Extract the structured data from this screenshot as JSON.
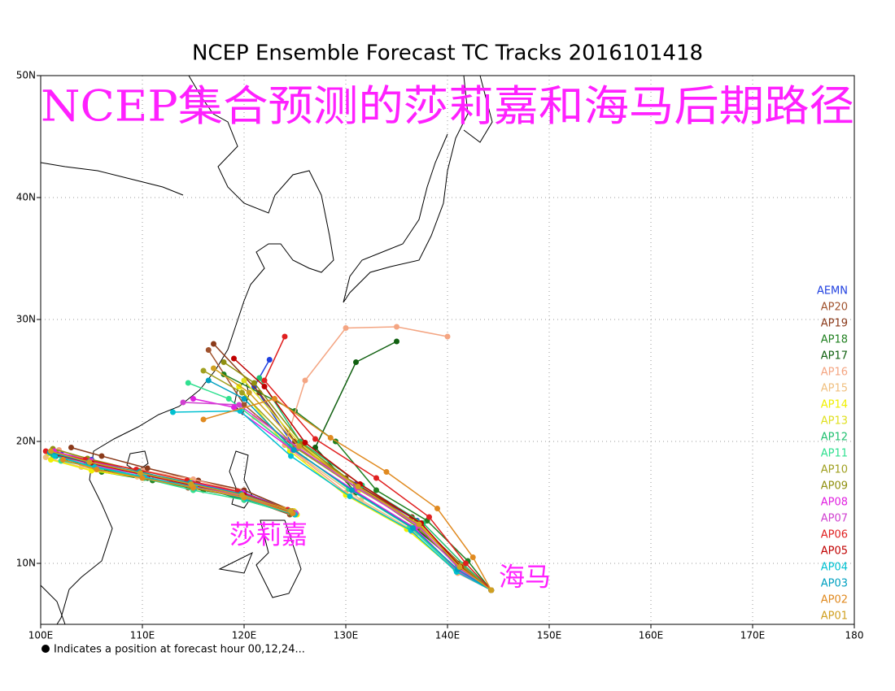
{
  "title": "NCEP Ensemble Forecast TC Tracks 2016101418",
  "overlay_title": "NCEP集合预测的莎莉嘉和海马后期路径",
  "annotations": [
    "莎莉嘉",
    "海马"
  ],
  "footnote": "Indicates a position at forecast hour 00,12,24...",
  "map": {
    "xlim": [
      100,
      180
    ],
    "ylim": [
      5,
      50
    ],
    "xticks": [
      {
        "value": 100,
        "label": "100E"
      },
      {
        "value": 110,
        "label": "110E"
      },
      {
        "value": 120,
        "label": "120E"
      },
      {
        "value": 130,
        "label": "130E"
      },
      {
        "value": 140,
        "label": "140E"
      },
      {
        "value": 150,
        "label": "150E"
      },
      {
        "value": 160,
        "label": "160E"
      },
      {
        "value": 170,
        "label": "170E"
      },
      {
        "value": 180,
        "label": "180"
      }
    ],
    "yticks": [
      {
        "value": 10,
        "label": "10N"
      },
      {
        "value": 20,
        "label": "20N"
      },
      {
        "value": 30,
        "label": "30N"
      },
      {
        "value": 40,
        "label": "40N"
      },
      {
        "value": 50,
        "label": "50N"
      }
    ],
    "grid": true
  },
  "series": [
    {
      "name": "AEMN",
      "color": "#2040e0",
      "tracks": [
        {
          "lon": [
            144.3,
            141,
            137,
            131,
            125,
            121,
            122.5
          ],
          "lat": [
            7.8,
            9.8,
            13.5,
            16.5,
            19.5,
            24.5,
            26.7
          ]
        },
        {
          "lon": [
            125,
            120,
            115,
            110,
            105,
            102
          ],
          "lat": [
            14.2,
            15.8,
            16.5,
            17.3,
            18.5,
            19
          ]
        }
      ]
    },
    {
      "name": "AP20",
      "color": "#a0522d",
      "tracks": [
        {
          "lon": [
            144.3,
            141.5,
            137.5,
            131.5,
            125,
            120,
            116.5
          ],
          "lat": [
            7.8,
            9.8,
            13,
            16.3,
            19.5,
            23,
            27.5
          ]
        },
        {
          "lon": [
            124.5,
            119.5,
            114.5,
            109.5,
            104.5,
            101
          ],
          "lat": [
            14,
            15.5,
            16.2,
            17.5,
            18.2,
            19.2
          ]
        }
      ]
    },
    {
      "name": "AP19",
      "color": "#8b3a1a",
      "tracks": [
        {
          "lon": [
            144.3,
            141,
            136.5,
            130,
            125,
            121.5,
            117
          ],
          "lat": [
            7.8,
            10,
            13.8,
            17,
            20,
            24,
            28
          ]
        },
        {
          "lon": [
            124.8,
            120,
            115.5,
            110.5,
            106,
            103
          ],
          "lat": [
            14.3,
            16,
            16.8,
            17.8,
            18.8,
            19.5
          ]
        }
      ]
    },
    {
      "name": "AP18",
      "color": "#208020",
      "tracks": [
        {
          "lon": [
            144.3,
            142,
            138,
            133,
            129,
            125,
            118
          ],
          "lat": [
            7.8,
            10.2,
            13.5,
            16,
            20,
            22.5,
            25.5
          ]
        },
        {
          "lon": [
            125,
            120.5,
            116,
            111,
            106,
            102.5
          ],
          "lat": [
            14,
            15.3,
            16,
            16.8,
            17.5,
            18.6
          ]
        }
      ]
    },
    {
      "name": "AP17",
      "color": "#106010",
      "tracks": [
        {
          "lon": [
            144.3,
            141.5,
            137,
            131,
            127,
            131,
            135
          ],
          "lat": [
            7.8,
            9.6,
            12.8,
            15.8,
            19.5,
            26.5,
            28.2
          ]
        },
        {
          "lon": [
            124.6,
            120,
            115,
            110.5,
            105.5,
            101.5
          ],
          "lat": [
            14.1,
            15.2,
            16.4,
            17,
            17.8,
            18.8
          ]
        }
      ]
    },
    {
      "name": "AP16",
      "color": "#f4a582",
      "tracks": [
        {
          "lon": [
            144.3,
            141,
            136.5,
            130,
            124,
            126,
            130,
            135,
            140
          ],
          "lat": [
            7.8,
            9.2,
            12.6,
            15.8,
            19.7,
            25,
            29.3,
            29.4,
            28.6
          ]
        },
        {
          "lon": [
            124.2,
            119.5,
            115,
            110,
            105,
            101.8
          ],
          "lat": [
            14.4,
            15.9,
            16.9,
            17.6,
            18.4,
            19.3
          ]
        }
      ]
    },
    {
      "name": "AP15",
      "color": "#f0c080",
      "tracks": [
        {
          "lon": [
            144.3,
            141.2,
            137,
            131.5,
            126,
            121
          ],
          "lat": [
            7.8,
            9.4,
            12.5,
            15.2,
            18.5,
            22
          ]
        },
        {
          "lon": [
            124.5,
            120,
            114.5,
            109.5,
            104,
            100.5
          ],
          "lat": [
            14.2,
            15.6,
            16.6,
            17.1,
            17.9,
            18.7
          ]
        }
      ]
    },
    {
      "name": "AP14",
      "color": "#f0f000",
      "tracks": [
        {
          "lon": [
            144.3,
            141,
            136,
            130,
            124.5,
            119.5
          ],
          "lat": [
            7.8,
            9.3,
            12.8,
            15.6,
            19.2,
            24.5
          ]
        },
        {
          "lon": [
            125.2,
            120.3,
            115.3,
            110.2,
            105,
            101
          ],
          "lat": [
            14,
            15.4,
            16.2,
            17,
            17.6,
            18.5
          ]
        }
      ]
    },
    {
      "name": "AP13",
      "color": "#e0e020",
      "tracks": [
        {
          "lon": [
            144.3,
            141.3,
            137.3,
            131.3,
            125.5,
            120
          ],
          "lat": [
            7.8,
            9.7,
            13.2,
            16,
            19.8,
            25
          ]
        },
        {
          "lon": [
            124.9,
            119.8,
            114.8,
            109.8,
            104.8,
            100.8
          ],
          "lat": [
            14.3,
            15.7,
            16.7,
            17.4,
            18,
            19
          ]
        }
      ]
    },
    {
      "name": "AP12",
      "color": "#20c070",
      "tracks": [
        {
          "lon": [
            144.3,
            141.6,
            137.6,
            131.6,
            125.5,
            121.5
          ],
          "lat": [
            7.8,
            9.9,
            13.3,
            16.4,
            20,
            25.2
          ]
        },
        {
          "lon": [
            124.6,
            120.2,
            115.2,
            110.2,
            105.2,
            101.2
          ],
          "lat": [
            14.2,
            15.5,
            16.3,
            17,
            18.1,
            18.9
          ]
        }
      ]
    },
    {
      "name": "AP11",
      "color": "#30e090",
      "tracks": [
        {
          "lon": [
            144.3,
            140.8,
            136.3,
            130.3,
            124.5,
            118.5,
            114.5
          ],
          "lat": [
            7.8,
            9.5,
            13,
            16.1,
            19.6,
            23.5,
            24.8
          ]
        },
        {
          "lon": [
            125,
            120,
            115,
            110,
            106,
            102
          ],
          "lat": [
            14,
            15.2,
            16,
            17,
            17.8,
            18.4
          ]
        }
      ]
    },
    {
      "name": "AP10",
      "color": "#a0a020",
      "tracks": [
        {
          "lon": [
            144.3,
            141.4,
            137.2,
            131,
            125.2,
            119.8,
            116
          ],
          "lat": [
            7.8,
            9.8,
            13.1,
            16.2,
            19.4,
            24,
            25.8
          ]
        },
        {
          "lon": [
            124.7,
            120.1,
            115.1,
            110.1,
            105.1,
            101.5
          ],
          "lat": [
            14.1,
            15.4,
            16.5,
            17.3,
            18.2,
            19.1
          ]
        }
      ]
    },
    {
      "name": "AP09",
      "color": "#909010",
      "tracks": [
        {
          "lon": [
            144.3,
            141.2,
            137,
            131.2,
            125.7,
            121,
            118
          ],
          "lat": [
            7.8,
            9.6,
            13,
            16.3,
            19.8,
            24.8,
            26.5
          ]
        },
        {
          "lon": [
            124.4,
            119.6,
            114.6,
            109.6,
            104.6,
            101.2
          ],
          "lat": [
            14.3,
            15.6,
            16.4,
            17.6,
            18.6,
            19.4
          ]
        }
      ]
    },
    {
      "name": "AP08",
      "color": "#e020e0",
      "tracks": [
        {
          "lon": [
            144.3,
            141,
            136.8,
            130.8,
            124.8,
            119,
            115
          ],
          "lat": [
            7.8,
            9.4,
            12.9,
            16,
            19.3,
            22.8,
            23.5
          ]
        },
        {
          "lon": [
            124.8,
            119.9,
            114.9,
            109.9,
            104.9,
            101.3
          ],
          "lat": [
            14.2,
            15.8,
            16.6,
            17.4,
            18.4,
            19.2
          ]
        }
      ]
    },
    {
      "name": "AP07",
      "color": "#d040d0",
      "tracks": [
        {
          "lon": [
            144.3,
            141.1,
            137.1,
            131.1,
            125.3,
            119.5,
            114
          ],
          "lat": [
            7.8,
            9.6,
            13.1,
            16.2,
            19.5,
            23,
            23.2
          ]
        },
        {
          "lon": [
            125.1,
            120.1,
            115.4,
            110.4,
            105.4,
            101.6
          ],
          "lat": [
            14.1,
            15.5,
            16.3,
            17.2,
            18,
            18.9
          ]
        }
      ]
    },
    {
      "name": "AP06",
      "color": "#e02020",
      "tracks": [
        {
          "lon": [
            144.3,
            141.8,
            138.2,
            133,
            127,
            122,
            124
          ],
          "lat": [
            7.8,
            10,
            13.8,
            17,
            20.2,
            25,
            28.6
          ]
        },
        {
          "lon": [
            124.3,
            119.4,
            114.4,
            109.4,
            104.4,
            100.5
          ],
          "lat": [
            14.4,
            15.9,
            16.8,
            17.7,
            18.5,
            19.2
          ]
        }
      ]
    },
    {
      "name": "AP05",
      "color": "#c00000",
      "tracks": [
        {
          "lon": [
            144.3,
            141.3,
            137.4,
            131.4,
            126,
            122,
            119
          ],
          "lat": [
            7.8,
            9.7,
            13.3,
            16.5,
            19.9,
            24.5,
            26.8
          ]
        },
        {
          "lon": [
            124.7,
            120,
            115,
            110,
            105,
            101.6
          ],
          "lat": [
            14.2,
            15.6,
            16.4,
            17.3,
            18.2,
            18.9
          ]
        }
      ]
    },
    {
      "name": "AP04",
      "color": "#00c0d0",
      "tracks": [
        {
          "lon": [
            144.3,
            140.9,
            136.4,
            130.4,
            124.6,
            119.6,
            113
          ],
          "lat": [
            7.8,
            9.3,
            12.7,
            15.5,
            18.8,
            22.5,
            22.4
          ]
        },
        {
          "lon": [
            125,
            120.2,
            115.2,
            110.2,
            105.3,
            101.4
          ],
          "lat": [
            14,
            15.3,
            16.2,
            17.1,
            17.9,
            18.8
          ]
        }
      ]
    },
    {
      "name": "AP03",
      "color": "#00a0c0",
      "tracks": [
        {
          "lon": [
            144.3,
            141,
            136.6,
            130.6,
            124.9,
            120,
            116.5
          ],
          "lat": [
            7.8,
            9.5,
            12.9,
            16,
            19.3,
            23.5,
            25
          ]
        },
        {
          "lon": [
            124.5,
            119.7,
            114.7,
            109.7,
            104.7,
            100.9
          ],
          "lat": [
            14.3,
            15.7,
            16.6,
            17.5,
            18.3,
            19.1
          ]
        }
      ]
    },
    {
      "name": "AP02",
      "color": "#e08a20",
      "tracks": [
        {
          "lon": [
            144.3,
            142.5,
            139,
            134,
            128.5,
            123,
            116
          ],
          "lat": [
            7.8,
            10.5,
            14.5,
            17.5,
            20.3,
            23.5,
            21.8
          ]
        },
        {
          "lon": [
            124.8,
            120,
            115,
            110,
            105.5,
            102.2
          ],
          "lat": [
            14.1,
            15.4,
            16.2,
            17,
            17.7,
            18.5
          ]
        }
      ]
    },
    {
      "name": "AP01",
      "color": "#d0a020",
      "tracks": [
        {
          "lon": [
            144.3,
            141.2,
            137.2,
            131.2,
            125.4,
            120.5,
            117
          ],
          "lat": [
            7.8,
            9.7,
            13.2,
            16.3,
            19.6,
            24,
            26
          ]
        },
        {
          "lon": [
            124.6,
            119.8,
            114.8,
            109.8,
            104.8,
            101
          ],
          "lat": [
            14.3,
            15.6,
            16.5,
            17.4,
            18.3,
            19.2
          ]
        }
      ]
    }
  ]
}
